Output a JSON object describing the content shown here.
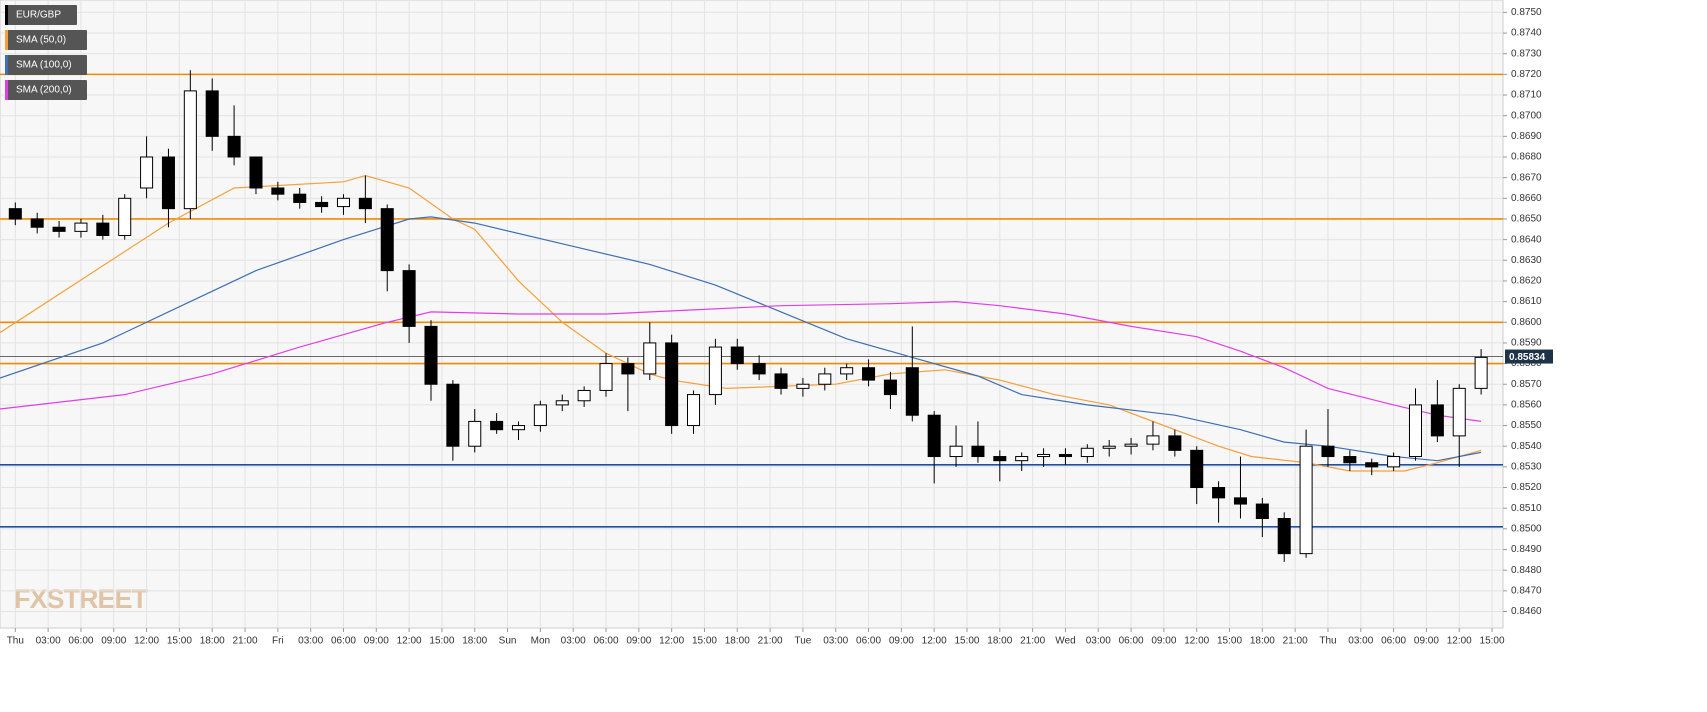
{
  "chart_data": {
    "type": "candlestick",
    "symbol": "EUR/GBP",
    "up_color": "#ffffff",
    "down_color": "#000000",
    "x": [
      0,
      2,
      4,
      6,
      8,
      10,
      12,
      14,
      16,
      18,
      20,
      22,
      24,
      26,
      28,
      30,
      32,
      34,
      36,
      38,
      40,
      42,
      44,
      46,
      48,
      50,
      52,
      54,
      56,
      58,
      60,
      62,
      64,
      66,
      68,
      70,
      72,
      74,
      76,
      78,
      80,
      82,
      84,
      86,
      88,
      90,
      92,
      94,
      96,
      98,
      100,
      102,
      104,
      106,
      108,
      110,
      112,
      114,
      116,
      118,
      120,
      122,
      124,
      126,
      128,
      130,
      132,
      134
    ],
    "open": [
      0.8655,
      0.865,
      0.8646,
      0.8644,
      0.8648,
      0.8642,
      0.8665,
      0.868,
      0.8655,
      0.8712,
      0.869,
      0.868,
      0.8665,
      0.8662,
      0.8658,
      0.8656,
      0.866,
      0.8655,
      0.8625,
      0.8598,
      0.857,
      0.854,
      0.8552,
      0.8548,
      0.855,
      0.856,
      0.8562,
      0.8567,
      0.858,
      0.8575,
      0.859,
      0.855,
      0.8565,
      0.8588,
      0.858,
      0.8575,
      0.8568,
      0.857,
      0.8575,
      0.8578,
      0.8572,
      0.8578,
      0.8555,
      0.8535,
      0.854,
      0.8535,
      0.8533,
      0.8535,
      0.8536,
      0.8535,
      0.8539,
      0.854,
      0.8541,
      0.8545,
      0.8538,
      0.852,
      0.8515,
      0.8512,
      0.8505,
      0.8488,
      0.854,
      0.8535,
      0.8532,
      0.853,
      0.8535,
      0.856,
      0.8545,
      0.8568
    ],
    "high": [
      0.8658,
      0.8653,
      0.8649,
      0.865,
      0.8652,
      0.8662,
      0.869,
      0.8684,
      0.8722,
      0.8718,
      0.8705,
      0.868,
      0.8668,
      0.8665,
      0.8661,
      0.8662,
      0.8671,
      0.8657,
      0.8628,
      0.8601,
      0.8572,
      0.8558,
      0.8556,
      0.8552,
      0.8562,
      0.8565,
      0.8569,
      0.8585,
      0.8583,
      0.86,
      0.8594,
      0.8567,
      0.8592,
      0.8592,
      0.8584,
      0.8578,
      0.8573,
      0.8578,
      0.858,
      0.8582,
      0.8576,
      0.8598,
      0.8557,
      0.855,
      0.8552,
      0.8538,
      0.8537,
      0.8539,
      0.8539,
      0.8541,
      0.8543,
      0.8544,
      0.8552,
      0.8548,
      0.854,
      0.8523,
      0.8535,
      0.8515,
      0.8508,
      0.8548,
      0.8558,
      0.8538,
      0.8534,
      0.8537,
      0.8568,
      0.8572,
      0.857,
      0.8587
    ],
    "low": [
      0.8647,
      0.8643,
      0.8641,
      0.8641,
      0.864,
      0.864,
      0.866,
      0.8646,
      0.865,
      0.8683,
      0.8676,
      0.8662,
      0.8659,
      0.8655,
      0.8653,
      0.8652,
      0.8648,
      0.8615,
      0.859,
      0.8562,
      0.8533,
      0.8537,
      0.8546,
      0.8543,
      0.8547,
      0.8557,
      0.8559,
      0.8564,
      0.8557,
      0.8572,
      0.8546,
      0.8546,
      0.856,
      0.8577,
      0.8572,
      0.8565,
      0.8564,
      0.8567,
      0.8572,
      0.8569,
      0.8558,
      0.8552,
      0.8522,
      0.853,
      0.8532,
      0.8523,
      0.8528,
      0.853,
      0.8531,
      0.8532,
      0.8535,
      0.8536,
      0.8538,
      0.8535,
      0.8512,
      0.8503,
      0.8505,
      0.8496,
      0.8484,
      0.8486,
      0.853,
      0.8528,
      0.8526,
      0.8528,
      0.8533,
      0.8542,
      0.853,
      0.8565
    ],
    "close": [
      0.865,
      0.8646,
      0.8644,
      0.8648,
      0.8642,
      0.866,
      0.868,
      0.8655,
      0.8712,
      0.869,
      0.868,
      0.8665,
      0.8662,
      0.8658,
      0.8656,
      0.866,
      0.8655,
      0.8625,
      0.8598,
      0.857,
      0.854,
      0.8552,
      0.8548,
      0.855,
      0.856,
      0.8562,
      0.8567,
      0.858,
      0.8575,
      0.859,
      0.855,
      0.8565,
      0.8588,
      0.858,
      0.8575,
      0.8568,
      0.857,
      0.8575,
      0.8578,
      0.8572,
      0.8565,
      0.8555,
      0.8535,
      0.854,
      0.8535,
      0.8533,
      0.8535,
      0.8536,
      0.8535,
      0.8539,
      0.854,
      0.8541,
      0.8545,
      0.8538,
      0.852,
      0.8515,
      0.8512,
      0.8505,
      0.8488,
      0.854,
      0.8535,
      0.8532,
      0.853,
      0.8535,
      0.856,
      0.8545,
      0.8568,
      0.8583
    ],
    "series": [
      {
        "name": "SMA (50,0)",
        "color": "#f5a03a",
        "x": [
          -1.4,
          14,
          20,
          30,
          32,
          36,
          40,
          42,
          46,
          50,
          54,
          58,
          60,
          65,
          75,
          80,
          85,
          90,
          95,
          100,
          105,
          110,
          113,
          118,
          122,
          127,
          130,
          134
        ],
        "values": [
          0.8595,
          0.8648,
          0.8665,
          0.8668,
          0.8671,
          0.8665,
          0.865,
          0.8645,
          0.862,
          0.86,
          0.8585,
          0.8575,
          0.8572,
          0.8568,
          0.857,
          0.8575,
          0.8577,
          0.8572,
          0.8565,
          0.856,
          0.855,
          0.854,
          0.8535,
          0.8532,
          0.8528,
          0.8528,
          0.8532,
          0.8538
        ]
      },
      {
        "name": "SMA (100,0)",
        "color": "#3d6fb4",
        "x": [
          -1.4,
          8,
          16,
          22,
          30,
          36,
          38,
          42,
          50,
          58,
          64,
          70,
          76,
          82,
          88,
          92,
          98,
          106,
          112,
          116,
          120,
          126,
          130,
          134
        ],
        "values": [
          0.8573,
          0.859,
          0.861,
          0.8625,
          0.864,
          0.865,
          0.8651,
          0.8648,
          0.8638,
          0.8628,
          0.8618,
          0.8605,
          0.8592,
          0.8583,
          0.8574,
          0.8565,
          0.856,
          0.8555,
          0.8548,
          0.8542,
          0.854,
          0.8535,
          0.8533,
          0.8537
        ]
      },
      {
        "name": "SMA (200,0)",
        "color": "#e23ee8",
        "x": [
          -1.4,
          10,
          18,
          26,
          34,
          38,
          46,
          54,
          62,
          70,
          80,
          86,
          90,
          96,
          102,
          108,
          112,
          116,
          120,
          126,
          130,
          134
        ],
        "values": [
          0.8558,
          0.8565,
          0.8575,
          0.8588,
          0.86,
          0.8605,
          0.8604,
          0.8604,
          0.8606,
          0.8608,
          0.8609,
          0.861,
          0.8608,
          0.8604,
          0.8598,
          0.8593,
          0.8586,
          0.8578,
          0.8568,
          0.856,
          0.8555,
          0.8552
        ]
      }
    ],
    "levels": [
      {
        "value": 0.872,
        "color": "#f08a00"
      },
      {
        "value": 0.865,
        "color": "#f08a00"
      },
      {
        "value": 0.86,
        "color": "#f08a00"
      },
      {
        "value": 0.858,
        "color": "#f08a00"
      },
      {
        "value": 0.8531,
        "color": "#1f4fa3"
      },
      {
        "value": 0.8501,
        "color": "#1f4fa3"
      }
    ],
    "last_price": 0.85834,
    "xlim": [
      -1.4,
      136
    ],
    "ylim": [
      0.8452,
      0.8756
    ],
    "xticks": [
      {
        "value": 0,
        "label": "Thu"
      },
      {
        "value": 3,
        "label": "03:00"
      },
      {
        "value": 6,
        "label": "06:00"
      },
      {
        "value": 9,
        "label": "09:00"
      },
      {
        "value": 12,
        "label": "12:00"
      },
      {
        "value": 15,
        "label": "15:00"
      },
      {
        "value": 18,
        "label": "18:00"
      },
      {
        "value": 21,
        "label": "21:00"
      },
      {
        "value": 24,
        "label": "Fri"
      },
      {
        "value": 27,
        "label": "03:00"
      },
      {
        "value": 30,
        "label": "06:00"
      },
      {
        "value": 33,
        "label": "09:00"
      },
      {
        "value": 36,
        "label": "12:00"
      },
      {
        "value": 39,
        "label": "15:00"
      },
      {
        "value": 42,
        "label": "18:00"
      },
      {
        "value": 45,
        "label": "Sun"
      },
      {
        "value": 48,
        "label": "Mon"
      },
      {
        "value": 51,
        "label": "03:00"
      },
      {
        "value": 54,
        "label": "06:00"
      },
      {
        "value": 57,
        "label": "09:00"
      },
      {
        "value": 60,
        "label": "12:00"
      },
      {
        "value": 63,
        "label": "15:00"
      },
      {
        "value": 66,
        "label": "18:00"
      },
      {
        "value": 69,
        "label": "21:00"
      },
      {
        "value": 72,
        "label": "Tue"
      },
      {
        "value": 75,
        "label": "03:00"
      },
      {
        "value": 78,
        "label": "06:00"
      },
      {
        "value": 81,
        "label": "09:00"
      },
      {
        "value": 84,
        "label": "12:00"
      },
      {
        "value": 87,
        "label": "15:00"
      },
      {
        "value": 90,
        "label": "18:00"
      },
      {
        "value": 93,
        "label": "21:00"
      },
      {
        "value": 96,
        "label": "Wed"
      },
      {
        "value": 99,
        "label": "03:00"
      },
      {
        "value": 102,
        "label": "06:00"
      },
      {
        "value": 105,
        "label": "09:00"
      },
      {
        "value": 108,
        "label": "12:00"
      },
      {
        "value": 111,
        "label": "15:00"
      },
      {
        "value": 114,
        "label": "18:00"
      },
      {
        "value": 117,
        "label": "21:00"
      },
      {
        "value": 120,
        "label": "Thu"
      },
      {
        "value": 123,
        "label": "03:00"
      },
      {
        "value": 126,
        "label": "06:00"
      },
      {
        "value": 129,
        "label": "09:00"
      },
      {
        "value": 132,
        "label": "12:00"
      },
      {
        "value": 135,
        "label": "15:00"
      }
    ],
    "yticks": [
      {
        "value": 0.846,
        "label": "0.8460"
      },
      {
        "value": 0.847,
        "label": "0.8470"
      },
      {
        "value": 0.848,
        "label": "0.8480"
      },
      {
        "value": 0.849,
        "label": "0.8490"
      },
      {
        "value": 0.85,
        "label": "0.8500"
      },
      {
        "value": 0.851,
        "label": "0.8510"
      },
      {
        "value": 0.852,
        "label": "0.8520"
      },
      {
        "value": 0.853,
        "label": "0.8530"
      },
      {
        "value": 0.854,
        "label": "0.8540"
      },
      {
        "value": 0.855,
        "label": "0.8550"
      },
      {
        "value": 0.856,
        "label": "0.8560"
      },
      {
        "value": 0.857,
        "label": "0.8570"
      },
      {
        "value": 0.858,
        "label": "0.8580"
      },
      {
        "value": 0.859,
        "label": "0.8590"
      },
      {
        "value": 0.86,
        "label": "0.8600"
      },
      {
        "value": 0.861,
        "label": "0.8610"
      },
      {
        "value": 0.862,
        "label": "0.8620"
      },
      {
        "value": 0.863,
        "label": "0.8630"
      },
      {
        "value": 0.864,
        "label": "0.8640"
      },
      {
        "value": 0.865,
        "label": "0.8650"
      },
      {
        "value": 0.866,
        "label": "0.8660"
      },
      {
        "value": 0.867,
        "label": "0.8670"
      },
      {
        "value": 0.868,
        "label": "0.8680"
      },
      {
        "value": 0.869,
        "label": "0.8690"
      },
      {
        "value": 0.87,
        "label": "0.8700"
      },
      {
        "value": 0.871,
        "label": "0.8710"
      },
      {
        "value": 0.872,
        "label": "0.8720"
      },
      {
        "value": 0.873,
        "label": "0.8730"
      },
      {
        "value": 0.874,
        "label": "0.8740"
      },
      {
        "value": 0.875,
        "label": "0.8750"
      }
    ],
    "grid": true,
    "watermark": "FXSTREET"
  }
}
